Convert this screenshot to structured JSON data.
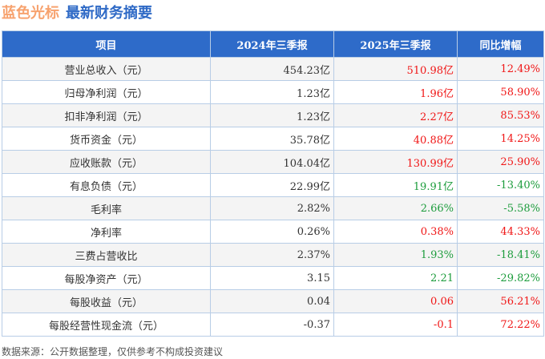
{
  "title": {
    "company": "蓝色光标",
    "subtitle": "最新财务摘要"
  },
  "headers": [
    "项目",
    "2024年三季报",
    "2025年三季报",
    "同比增幅"
  ],
  "colors": {
    "up": "#f01616",
    "down": "#1c9c3c",
    "header": "#2e6bc9"
  },
  "rows": [
    {
      "item": "营业总收入（元）",
      "y2024": "454.23亿",
      "y2025": "510.98亿",
      "yoy": "12.49%",
      "trend": "up"
    },
    {
      "item": "归母净利润（元）",
      "y2024": "1.23亿",
      "y2025": "1.96亿",
      "yoy": "58.90%",
      "trend": "up"
    },
    {
      "item": "扣非净利润（元）",
      "y2024": "1.23亿",
      "y2025": "2.27亿",
      "yoy": "85.53%",
      "trend": "up"
    },
    {
      "item": "货币资金（元）",
      "y2024": "35.78亿",
      "y2025": "40.88亿",
      "yoy": "14.25%",
      "trend": "up"
    },
    {
      "item": "应收账款（元）",
      "y2024": "104.04亿",
      "y2025": "130.99亿",
      "yoy": "25.90%",
      "trend": "up"
    },
    {
      "item": "有息负债（元）",
      "y2024": "22.99亿",
      "y2025": "19.91亿",
      "yoy": "-13.40%",
      "trend": "down"
    },
    {
      "item": "毛利率",
      "y2024": "2.82%",
      "y2025": "2.66%",
      "yoy": "-5.58%",
      "trend": "down"
    },
    {
      "item": "净利率",
      "y2024": "0.26%",
      "y2025": "0.38%",
      "yoy": "44.33%",
      "trend": "up"
    },
    {
      "item": "三费占营收比",
      "y2024": "2.37%",
      "y2025": "1.93%",
      "yoy": "-18.41%",
      "trend": "down"
    },
    {
      "item": "每股净资产（元）",
      "y2024": "3.15",
      "y2025": "2.21",
      "yoy": "-29.82%",
      "trend": "down"
    },
    {
      "item": "每股收益（元）",
      "y2024": "0.04",
      "y2025": "0.06",
      "yoy": "56.21%",
      "trend": "up"
    },
    {
      "item": "每股经营性现金流（元）",
      "y2024": "-0.37",
      "y2025": "-0.1",
      "yoy": "72.22%",
      "trend": "up"
    }
  ],
  "footer": "数据来源：公开数据整理，仅供参考不构成投资建议"
}
